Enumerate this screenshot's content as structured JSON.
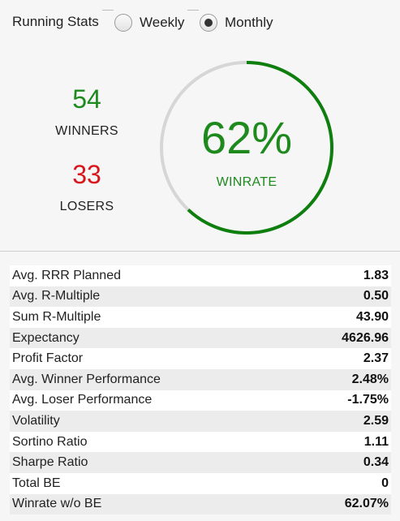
{
  "header": {
    "title": "Running Stats",
    "options": [
      {
        "label": "Weekly",
        "selected": false
      },
      {
        "label": "Monthly",
        "selected": true
      }
    ]
  },
  "stats": {
    "winners": {
      "value": "54",
      "label": "WINNERS"
    },
    "losers": {
      "value": "33",
      "label": "LOSERS"
    }
  },
  "winrate": {
    "display": "62%",
    "label": "WINRATE",
    "fraction": 0.62,
    "color_filled": "#0e7f0e",
    "color_track": "#d6d6d6"
  },
  "colors": {
    "winners": "#1e8a1e",
    "losers": "#d8151b"
  },
  "metrics": [
    {
      "label": "Avg. RRR Planned",
      "value": "1.83"
    },
    {
      "label": "Avg. R-Multiple",
      "value": "0.50"
    },
    {
      "label": "Sum R-Multiple",
      "value": "43.90"
    },
    {
      "label": "Expectancy",
      "value": "4626.96"
    },
    {
      "label": "Profit Factor",
      "value": "2.37"
    },
    {
      "label": "Avg. Winner Performance",
      "value": "2.48%"
    },
    {
      "label": "Avg. Loser Performance",
      "value": "-1.75%"
    },
    {
      "label": "Volatility",
      "value": "2.59"
    },
    {
      "label": "Sortino Ratio",
      "value": "1.11"
    },
    {
      "label": "Sharpe Ratio",
      "value": "0.34"
    },
    {
      "label": "Total BE",
      "value": "0"
    },
    {
      "label": "Winrate w/o BE",
      "value": "62.07%"
    }
  ]
}
